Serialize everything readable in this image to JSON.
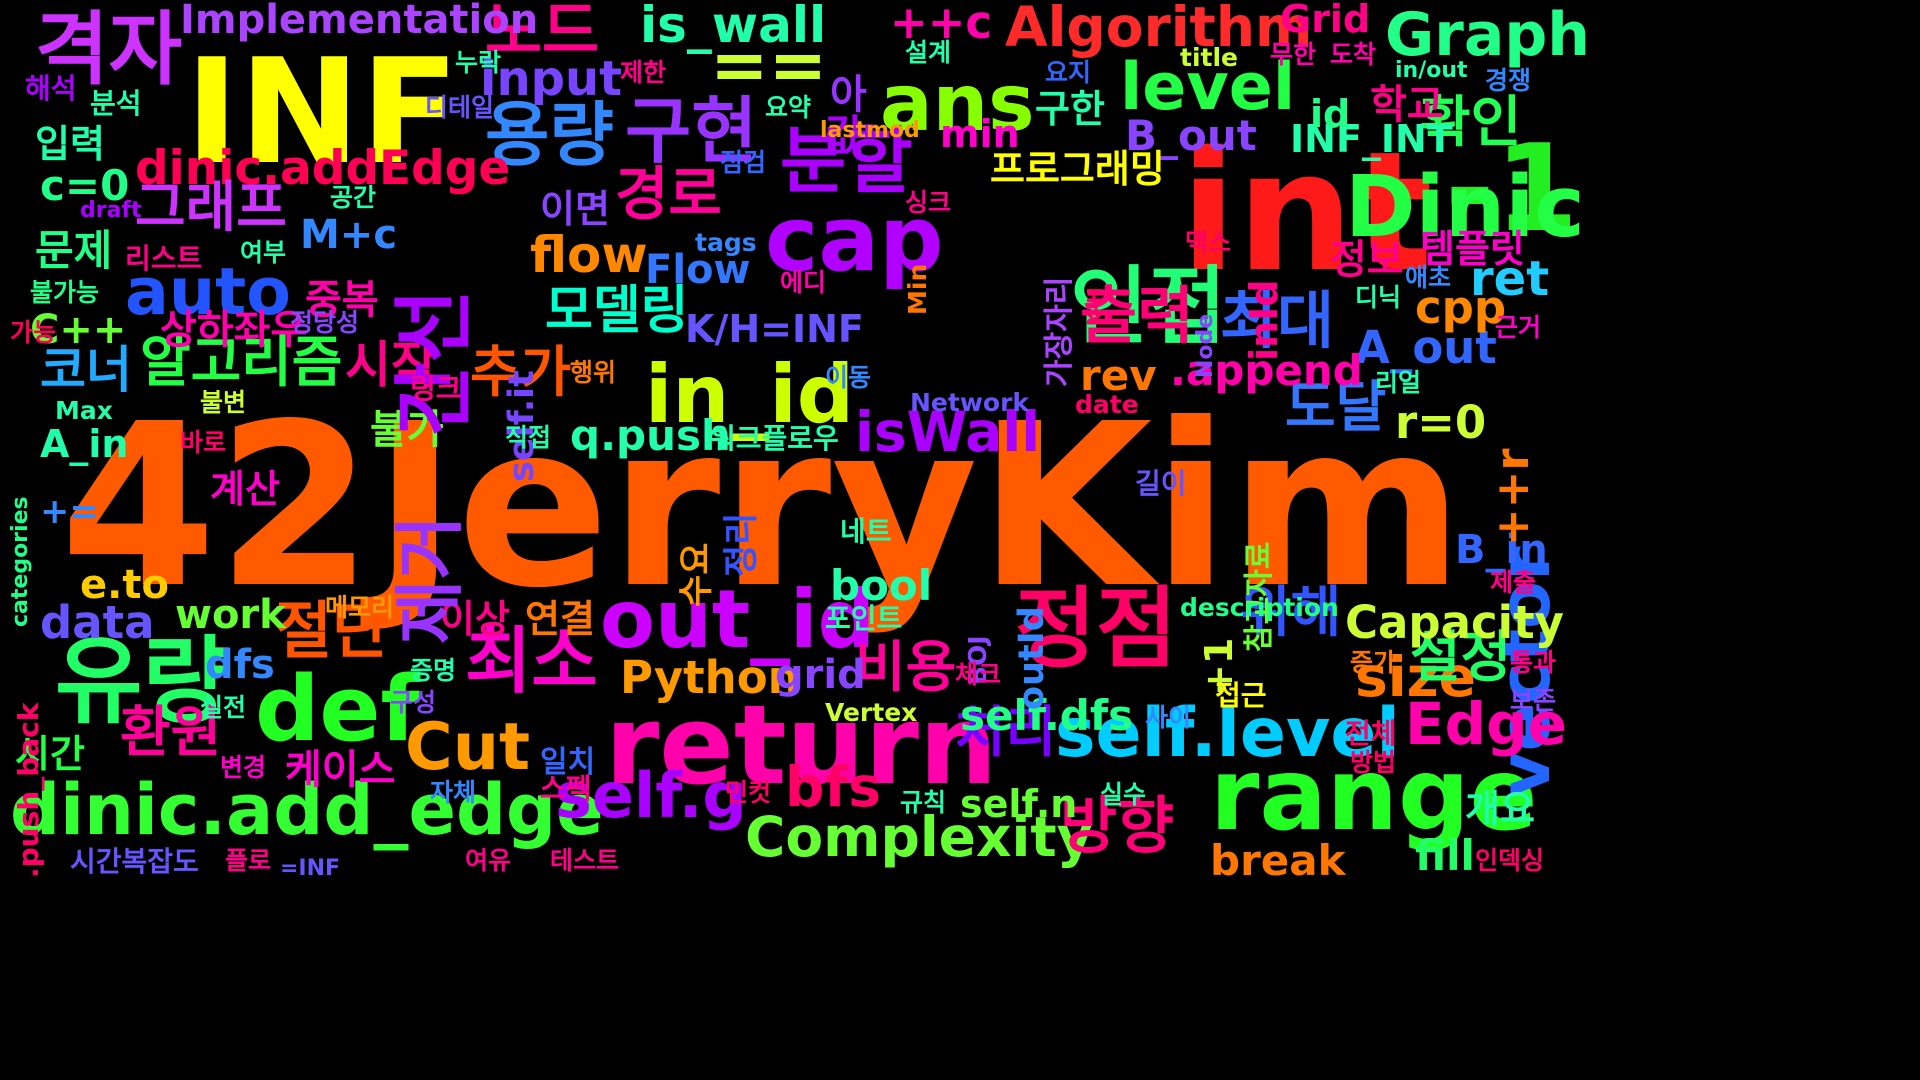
{
  "words": [
    {
      "text": "42JerryKim",
      "color": "#ff5a00"
    },
    {
      "text": "int",
      "color": "#ff1a1a"
    },
    {
      "text": "INF",
      "color": "#ffff00"
    },
    {
      "text": "-1",
      "color": "#22ee22"
    },
    {
      "text": "return",
      "color": "#ff00aa"
    },
    {
      "text": "range",
      "color": "#22ff22"
    },
    {
      "text": "Dinic",
      "color": "#22ff44"
    },
    {
      "text": "cap",
      "color": "#b100ff"
    },
    {
      "text": "유량",
      "color": "#22ff66"
    },
    {
      "text": "정점",
      "color": "#ff0066"
    },
    {
      "text": "인접",
      "color": "#22ff77"
    },
    {
      "text": "격자",
      "color": "#cc33ff"
    },
    {
      "text": "용량",
      "color": "#3388ff"
    },
    {
      "text": "def",
      "color": "#22ff22"
    },
    {
      "text": "out_id",
      "color": "#cc00ff"
    },
    {
      "text": "in_id",
      "color": "#ccff00"
    },
    {
      "text": "ans",
      "color": "#88ff00"
    },
    {
      "text": "Algorithm",
      "color": "#ff2a2a"
    },
    {
      "text": "Graph",
      "color": "#22ff88"
    },
    {
      "text": "auto",
      "color": "#2255ff"
    },
    {
      "text": "분할",
      "color": "#aa00ff"
    },
    {
      "text": "구현",
      "color": "#9933ff"
    },
    {
      "text": "노드",
      "color": "#ff0088"
    },
    {
      "text": "==",
      "color": "#ccff33"
    },
    {
      "text": "dinic.add_edge",
      "color": "#33ff33"
    },
    {
      "text": "self.level",
      "color": "#00ccff"
    },
    {
      "text": "self.g",
      "color": "#aa00ff"
    },
    {
      "text": "Cut",
      "color": "#ff9900"
    },
    {
      "text": "Complexity",
      "color": "#66ff33"
    },
    {
      "text": "최소",
      "color": "#ff00cc"
    },
    {
      "text": "방향",
      "color": "#ff0077"
    },
    {
      "text": "절단",
      "color": "#ff5500"
    },
    {
      "text": "출력",
      "color": "#ff0077"
    },
    {
      "text": "최대",
      "color": "#3366ff"
    },
    {
      "text": "경로",
      "color": "#ff0099"
    },
    {
      "text": "모델링",
      "color": "#00ffcc"
    },
    {
      "text": "알고리즘",
      "color": "#22ff44"
    },
    {
      "text": "dinic.addEdge",
      "color": "#ff0055"
    },
    {
      "text": "level",
      "color": "#22ff44"
    },
    {
      "text": "isWall",
      "color": "#aa00ff"
    },
    {
      "text": "vector",
      "color": "#2266ff"
    },
    {
      "text": "Edge",
      "color": "#ff00aa"
    },
    {
      "text": "input",
      "color": "#7744ff"
    },
    {
      "text": "is_wall",
      "color": "#22ffaa"
    },
    {
      "text": "Implementation",
      "color": "#aa44ff"
    },
    {
      "text": "flow",
      "color": "#ff8800"
    },
    {
      "text": "bfs",
      "color": "#ff0066"
    },
    {
      "text": "size",
      "color": "#ff7700"
    },
    {
      "text": "처리",
      "color": "#7700ff"
    },
    {
      "text": "설정",
      "color": "#22ff66"
    },
    {
      "text": "위해",
      "color": "#3355ff"
    },
    {
      "text": "도달",
      "color": "#3377ff"
    },
    {
      "text": "확인",
      "color": "#22ff55"
    },
    {
      "text": "추가",
      "color": "#ff5500"
    },
    {
      "text": "환원",
      "color": "#ff0099"
    },
    {
      "text": "비용",
      "color": "#ff0099"
    },
    {
      "text": "코너",
      "color": "#22aaff"
    },
    {
      "text": "시작",
      "color": "#ff0088"
    },
    {
      "text": "그래프",
      "color": "#cc33ff"
    },
    {
      "text": "Capacity",
      "color": "#ccff33"
    },
    {
      "text": "Python",
      "color": "#ff9900"
    },
    {
      "text": "A_out",
      "color": "#3366ff"
    },
    {
      "text": "B_out",
      "color": "#8844ff"
    },
    {
      "text": "INF_INT",
      "color": "#22ffaa"
    },
    {
      "text": "ret",
      "color": "#22ccff"
    },
    {
      "text": "cpp",
      "color": "#ff8800"
    },
    {
      "text": "r=0",
      "color": "#ccff33"
    },
    {
      "text": "rev",
      "color": "#ff7700"
    },
    {
      "text": ".append",
      "color": "#ff00aa"
    },
    {
      "text": "K/H=INF",
      "color": "#6655ff"
    },
    {
      "text": "C++",
      "color": "#66ff33"
    },
    {
      "text": "상하좌우",
      "color": "#ff00aa"
    },
    {
      "text": "M+c",
      "color": "#3388ff"
    },
    {
      "text": "c=0",
      "color": "#22ff88"
    },
    {
      "text": "q.push",
      "color": "#22ffaa"
    },
    {
      "text": "self.dfs",
      "color": "#22ff88"
    },
    {
      "text": "self.n",
      "color": "#66ff33"
    },
    {
      "text": "grid",
      "color": "#8844ff"
    },
    {
      "text": "bool",
      "color": "#22ffaa"
    },
    {
      "text": "work",
      "color": "#66ff33"
    },
    {
      "text": "data",
      "color": "#6655ff"
    },
    {
      "text": "e.to",
      "color": "#ffcc00"
    },
    {
      "text": "dfs",
      "color": "#3388ff"
    },
    {
      "text": "A_in",
      "color": "#22ffaa"
    },
    {
      "text": "B_in",
      "color": "#3366ff"
    },
    {
      "text": "break",
      "color": "#ff7700"
    },
    {
      "text": "fill",
      "color": "#22ff66"
    },
    {
      "text": "Flow",
      "color": "#3377ff"
    },
    {
      "text": "min",
      "color": "#ff00cc"
    },
    {
      "text": "id",
      "color": "#22ff88"
    },
    {
      "text": "Grid",
      "color": "#ff0088"
    },
    {
      "text": "++c",
      "color": "#ff00aa"
    },
    {
      "text": "++r",
      "color": "#ff7700"
    },
    {
      "text": "+=",
      "color": "#3388ff"
    },
    {
      "text": "+1",
      "color": "#ccff33"
    },
    {
      "text": "학교",
      "color": "#ff0088"
    },
    {
      "text": "구한",
      "color": "#22ffaa"
    },
    {
      "text": "이면",
      "color": "#8844ff"
    },
    {
      "text": "정보",
      "color": "#ff0088"
    },
    {
      "text": "템플릿",
      "color": "#ff00cc"
    },
    {
      "text": "문제",
      "color": "#22ff88"
    },
    {
      "text": "입력",
      "color": "#22ffaa"
    },
    {
      "text": "중복",
      "color": "#ff00aa"
    },
    {
      "text": "불가",
      "color": "#66ff33"
    },
    {
      "text": "계산",
      "color": "#ff00cc"
    },
    {
      "text": "이상",
      "color": "#ff0088"
    },
    {
      "text": "연결",
      "color": "#ff7700"
    },
    {
      "text": "케이스",
      "color": "#ff00cc"
    },
    {
      "text": "시간",
      "color": "#22ff44"
    },
    {
      "text": "개요",
      "color": "#22ffaa"
    },
    {
      "text": "프로그래밍",
      "color": "#ffff00"
    },
    {
      "text": "가장자리",
      "color": "#aa44ff"
    },
    {
      "text": "참고자료",
      "color": "#66ff33"
    },
    {
      "text": "정리",
      "color": "#3355ff"
    },
    {
      "text": "수요",
      "color": "#ff9900"
    },
    {
      "text": "제거",
      "color": "#9933ff"
    },
    {
      "text": "간선",
      "color": "#aa00ff"
    },
    {
      "text": "inId",
      "color": "#ff0088"
    },
    {
      "text": "outId",
      "color": "#3388ff"
    },
    {
      "text": "self.it",
      "color": "#7744ff"
    },
    {
      "text": ".push_back",
      "color": "#ff0066"
    },
    {
      "text": "categories",
      "color": "#22ff88"
    },
    {
      "text": "아",
      "color": "#9933ff"
    },
    {
      "text": "값",
      "color": "#aa00ff"
    },
    {
      "text": "해석",
      "color": "#aa00ff"
    },
    {
      "text": "분석",
      "color": "#22ffaa"
    },
    {
      "text": "draft",
      "color": "#aa00ff"
    },
    {
      "text": "공간",
      "color": "#22ffaa"
    },
    {
      "text": "리스트",
      "color": "#ff0088"
    },
    {
      "text": "여부",
      "color": "#22ffaa"
    },
    {
      "text": "불가능",
      "color": "#22ff88"
    },
    {
      "text": "가능",
      "color": "#ff0055"
    },
    {
      "text": "정당성",
      "color": "#8844ff"
    },
    {
      "text": "링크",
      "color": "#ff0088"
    },
    {
      "text": "행위",
      "color": "#ff7700"
    },
    {
      "text": "Max",
      "color": "#22ffaa"
    },
    {
      "text": "불변",
      "color": "#ccff33"
    },
    {
      "text": "바로",
      "color": "#ff0066"
    },
    {
      "text": "이동",
      "color": "#3388ff"
    },
    {
      "text": "Network",
      "color": "#6655ff"
    },
    {
      "text": "date",
      "color": "#ff0066"
    },
    {
      "text": "직접",
      "color": "#22ffaa"
    },
    {
      "text": "워크플로우",
      "color": "#22ffaa"
    },
    {
      "text": "길이",
      "color": "#6655ff"
    },
    {
      "text": "네트",
      "color": "#22ffaa"
    },
    {
      "text": "메모리",
      "color": "#ff9900"
    },
    {
      "text": "포인트",
      "color": "#22ffaa"
    },
    {
      "text": "BOJ",
      "color": "#8844ff"
    },
    {
      "text": "description",
      "color": "#22ff88"
    },
    {
      "text": "증가",
      "color": "#ff7700"
    },
    {
      "text": "통과",
      "color": "#ff0088"
    },
    {
      "text": "보존",
      "color": "#8844ff"
    },
    {
      "text": "제출",
      "color": "#ff0088"
    },
    {
      "text": "증명",
      "color": "#22ffaa"
    },
    {
      "text": "체크",
      "color": "#ff0088"
    },
    {
      "text": "접근",
      "color": "#ffff00"
    },
    {
      "text": "실전",
      "color": "#22ffaa"
    },
    {
      "text": "구성",
      "color": "#8844ff"
    },
    {
      "text": "Vertex",
      "color": "#ccff33"
    },
    {
      "text": "사이",
      "color": "#3388ff"
    },
    {
      "text": "전체",
      "color": "#ff0066"
    },
    {
      "text": "일치",
      "color": "#3366ff"
    },
    {
      "text": "변경",
      "color": "#ff00cc"
    },
    {
      "text": "방법",
      "color": "#ff0066"
    },
    {
      "text": "스펙",
      "color": "#ff0088"
    },
    {
      "text": "민컷",
      "color": "#ff0066"
    },
    {
      "text": "자체",
      "color": "#3388ff"
    },
    {
      "text": "규칙",
      "color": "#22ffaa"
    },
    {
      "text": "실수",
      "color": "#22ffaa"
    },
    {
      "text": "시간복잡도",
      "color": "#6655ff"
    },
    {
      "text": "플로",
      "color": "#ff0088"
    },
    {
      "text": "=INF",
      "color": "#6655ff"
    },
    {
      "text": "여유",
      "color": "#ff0088"
    },
    {
      "text": "테스트",
      "color": "#ff0088"
    },
    {
      "text": "인덱싱",
      "color": "#ff0066"
    },
    {
      "text": "설계",
      "color": "#22ffaa"
    },
    {
      "text": "제한",
      "color": "#ff0088"
    },
    {
      "text": "요지",
      "color": "#3366ff"
    },
    {
      "text": "누락",
      "color": "#22ffaa"
    },
    {
      "text": "디테일",
      "color": "#6655ff"
    },
    {
      "text": "무한",
      "color": "#ff00aa"
    },
    {
      "text": "도착",
      "color": "#ff00aa"
    },
    {
      "text": "title",
      "color": "#ccff33"
    },
    {
      "text": "in/out",
      "color": "#22ffaa"
    },
    {
      "text": "경쟁",
      "color": "#3388ff"
    },
    {
      "text": "요약",
      "color": "#22ffaa"
    },
    {
      "text": "lastmod",
      "color": "#ff9900"
    },
    {
      "text": "점검",
      "color": "#3366ff"
    },
    {
      "text": "싱크",
      "color": "#ff0088"
    },
    {
      "text": "tags",
      "color": "#3388ff"
    },
    {
      "text": "Min",
      "color": "#ff7700"
    },
    {
      "text": "에디",
      "color": "#ff00aa"
    },
    {
      "text": "K-H",
      "color": "#ff0066"
    },
    {
      "text": "맥스",
      "color": "#ff0066"
    },
    {
      "text": "Node",
      "color": "#8844ff"
    },
    {
      "text": "디닉",
      "color": "#22ffaa"
    },
    {
      "text": "애초",
      "color": "#3388ff"
    },
    {
      "text": "근거",
      "color": "#ff00cc"
    },
    {
      "text": "리얼",
      "color": "#22ffaa"
    }
  ]
}
